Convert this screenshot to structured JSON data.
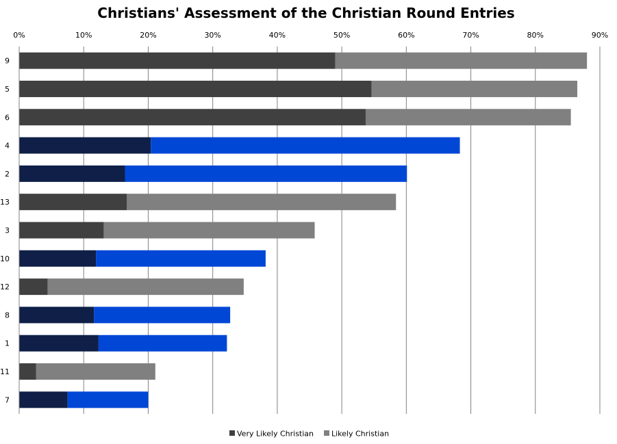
{
  "chart_data": {
    "type": "bar",
    "orientation": "horizontal",
    "stacked": true,
    "title": "Christians' Assessment of the Christian Round Entries",
    "xlabel": "",
    "ylabel": "",
    "xlim": [
      0,
      90
    ],
    "x_ticks": [
      "0%",
      "10%",
      "20%",
      "30%",
      "40%",
      "50%",
      "60%",
      "70%",
      "80%",
      "90%"
    ],
    "x_tick_values": [
      0,
      10,
      20,
      30,
      40,
      50,
      60,
      70,
      80,
      90
    ],
    "grid": true,
    "legend_position": "bottom",
    "categories": [
      "9",
      "5",
      "6",
      "4",
      "2",
      "13",
      "3",
      "10",
      "12",
      "8",
      "1",
      "11",
      "7"
    ],
    "series": [
      {
        "name": "Very Likely Christian",
        "values": [
          49,
          54.6,
          53.7,
          20.4,
          16.4,
          16.7,
          13.1,
          11.9,
          4.4,
          11.6,
          12.3,
          2.6,
          7.5
        ]
      },
      {
        "name": "Likely Christian",
        "values": [
          39,
          31.9,
          31.8,
          47.9,
          43.7,
          41.7,
          32.7,
          26.3,
          30.4,
          21.1,
          19.9,
          18.5,
          12.5
        ]
      }
    ],
    "colors": {
      "very_likely": "#404040",
      "likely": "#808080",
      "very_likely_blue": "#0f1f47",
      "likely_blue": "#0047d6",
      "grid": "#808080",
      "axis": "#808080"
    },
    "blue_categories": [
      "4",
      "2",
      "10",
      "8",
      "1",
      "7"
    ]
  }
}
